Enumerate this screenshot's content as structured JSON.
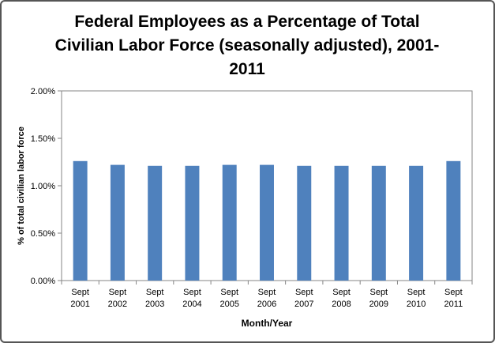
{
  "chart_data": {
    "type": "bar",
    "title_lines": [
      "Federal Employees as a Percentage of Total",
      "Civilian Labor Force (seasonally adjusted), 2001-",
      "2011"
    ],
    "xlabel": "Month/Year",
    "ylabel": "% of total civilian labor force",
    "categories": [
      [
        "Sept",
        "2001"
      ],
      [
        "Sept",
        "2002"
      ],
      [
        "Sept",
        "2003"
      ],
      [
        "Sept",
        "2004"
      ],
      [
        "Sept",
        "2005"
      ],
      [
        "Sept",
        "2006"
      ],
      [
        "Sept",
        "2007"
      ],
      [
        "Sept",
        "2008"
      ],
      [
        "Sept",
        "2009"
      ],
      [
        "Sept",
        "2010"
      ],
      [
        "Sept",
        "2011"
      ]
    ],
    "values": [
      1.26,
      1.22,
      1.21,
      1.21,
      1.22,
      1.22,
      1.21,
      1.21,
      1.21,
      1.21,
      1.26
    ],
    "ylim": [
      0,
      2
    ],
    "yticks": [
      {
        "value": 0,
        "label": "0.00%"
      },
      {
        "value": 0.5,
        "label": "0.50%"
      },
      {
        "value": 1.0,
        "label": "1.00%"
      },
      {
        "value": 1.5,
        "label": "1.50%"
      },
      {
        "value": 2.0,
        "label": "2.00%"
      }
    ],
    "grid": false,
    "legend": "none",
    "bar_color": "#4F81BD"
  }
}
